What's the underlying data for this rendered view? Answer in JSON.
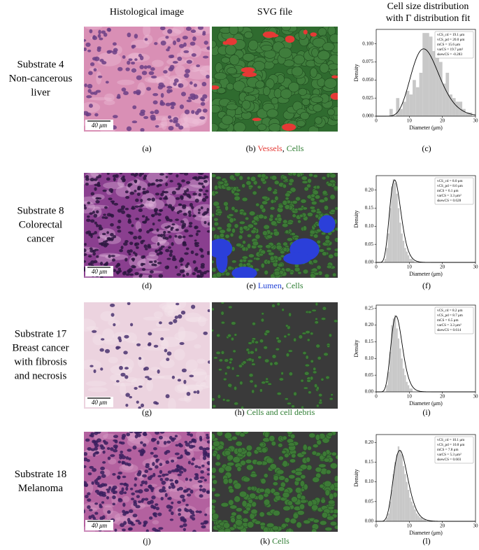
{
  "headers": {
    "histology": "Histological image",
    "svg": "SVG file",
    "distribution": [
      "Cell size distribution",
      "with Γ distribution fit"
    ]
  },
  "rows": [
    {
      "substrate": [
        "Substrate 4",
        "Non-cancerous",
        "liver"
      ],
      "scale_bar": "40 μm",
      "captions": {
        "histology": "(a)",
        "svg": [
          {
            "text": "(b) "
          },
          {
            "text": "Vessels",
            "color": "#e53935"
          },
          {
            "text": ", "
          },
          {
            "text": "Cells",
            "color": "#2e7d32"
          }
        ],
        "chart": "(c)"
      },
      "chart": {
        "type": "histogram",
        "color": "#c8c8c8",
        "fit_color": "#000000",
        "bins": [
          4,
          5,
          6,
          7,
          8,
          9,
          10,
          11,
          12,
          13,
          14,
          15,
          16,
          17,
          18,
          19,
          20,
          21,
          22,
          23,
          24,
          25,
          26,
          27,
          28,
          29
        ],
        "values": [
          0.01,
          0.0,
          0.025,
          0.01,
          0.02,
          0.035,
          0.03,
          0.05,
          0.04,
          0.06,
          0.115,
          0.115,
          0.11,
          0.09,
          0.1,
          0.075,
          0.045,
          0.06,
          0.03,
          0.025,
          0.02,
          0.02,
          0.01,
          0.005,
          0.005
        ],
        "xlim": [
          0,
          30
        ],
        "xticks": [
          0,
          10,
          20,
          30
        ],
        "ylim": [
          0,
          0.12
        ],
        "yticks": [
          {
            "value": 0,
            "label": "0.000"
          },
          {
            "value": 0.025,
            "label": "0.025"
          },
          {
            "value": 0.05,
            "label": "0.050"
          },
          {
            "value": 0.075,
            "label": "0.075"
          },
          {
            "value": 0.1,
            "label": "0.100"
          }
        ],
        "x_label": "Diameter (μm)",
        "y_label": "Density",
        "stats": [
          "vCS_cd = 19.1 μm",
          "vCS_pd = 20.0 μm",
          "mCS = 15.6 μm",
          "varCS = 19.7 μm²",
          "skewCS = -0.283"
        ],
        "fit": {
          "mean": 15.6,
          "var": 19.7
        }
      }
    },
    {
      "substrate": [
        "Substrate 8",
        "Colorectal",
        "cancer"
      ],
      "scale_bar": "40 μm",
      "captions": {
        "histology": "(d)",
        "svg": [
          {
            "text": "(e) "
          },
          {
            "text": "Lumen",
            "color": "#1e3fd6"
          },
          {
            "text": ", "
          },
          {
            "text": "Cells",
            "color": "#2e7d32"
          }
        ],
        "chart": "(f)"
      },
      "chart": {
        "type": "histogram",
        "color": "#c8c8c8",
        "fit_color": "#000000",
        "bins": [
          2.5,
          3,
          3.5,
          4,
          4.5,
          5,
          5.5,
          6,
          6.5,
          7,
          7.5,
          8,
          8.5,
          9,
          9.5,
          10,
          10.5,
          11,
          11.5
        ],
        "values": [
          0.01,
          0.04,
          0.08,
          0.15,
          0.21,
          0.23,
          0.22,
          0.19,
          0.15,
          0.11,
          0.08,
          0.06,
          0.04,
          0.03,
          0.02,
          0.01,
          0.01,
          0.005
        ],
        "xlim": [
          0,
          30
        ],
        "xticks": [
          0,
          10,
          20,
          30
        ],
        "ylim": [
          0,
          0.24
        ],
        "yticks": [
          {
            "value": 0,
            "label": "0.00"
          },
          {
            "value": 0.05,
            "label": "0.05"
          },
          {
            "value": 0.1,
            "label": "0.10"
          },
          {
            "value": 0.15,
            "label": "0.15"
          },
          {
            "value": 0.2,
            "label": "0.20"
          }
        ],
        "x_label": "Diameter (μm)",
        "y_label": "Density",
        "stats": [
          "vCS_cd = 8.0 μm",
          "vCS_pd = 8.6 μm",
          "mCS = 6.1 μm",
          "varCS = 3.3 μm²",
          "skewCS = 0.628"
        ],
        "fit": {
          "mean": 6.1,
          "var": 3.3
        }
      }
    },
    {
      "substrate": [
        "Substrate 17",
        "Breast cancer",
        "with fibrosis",
        "and necrosis"
      ],
      "scale_bar": "40 μm",
      "captions": {
        "histology": "(g)",
        "svg": [
          {
            "text": "(h) "
          },
          {
            "text": "Cells and cell debris",
            "color": "#2e7d32"
          }
        ],
        "chart": "(i)"
      },
      "chart": {
        "type": "histogram",
        "color": "#c8c8c8",
        "fit_color": "#000000",
        "bins": [
          3,
          3.5,
          4,
          4.5,
          5,
          5.5,
          6,
          6.5,
          7,
          7.5,
          8,
          8.5,
          9,
          9.5,
          10,
          10.5,
          11
        ],
        "values": [
          0.02,
          0.06,
          0.12,
          0.2,
          0.22,
          0.23,
          0.19,
          0.16,
          0.13,
          0.1,
          0.07,
          0.05,
          0.03,
          0.02,
          0.01,
          0.01
        ],
        "xlim": [
          0,
          30
        ],
        "xticks": [
          0,
          10,
          20,
          30
        ],
        "ylim": [
          0,
          0.26
        ],
        "yticks": [
          {
            "value": 0,
            "label": "0.00"
          },
          {
            "value": 0.05,
            "label": "0.05"
          },
          {
            "value": 0.1,
            "label": "0.10"
          },
          {
            "value": 0.15,
            "label": "0.15"
          },
          {
            "value": 0.2,
            "label": "0.20"
          },
          {
            "value": 0.25,
            "label": "0.25"
          }
        ],
        "x_label": "Diameter (μm)",
        "y_label": "Density",
        "stats": [
          "vCS_cd = 8.2 μm",
          "vCS_pd = 8.7 μm",
          "mCS = 6.5 μm",
          "varCS = 3.3 μm²",
          "skewCS = 0.614"
        ],
        "fit": {
          "mean": 6.5,
          "var": 3.3
        }
      }
    },
    {
      "substrate": [
        "Substrate 18",
        "Melanoma"
      ],
      "scale_bar": "40 μm",
      "captions": {
        "histology": "(j)",
        "svg": [
          {
            "text": "(k) "
          },
          {
            "text": "Cells",
            "color": "#2e7d32"
          }
        ],
        "chart": "(l)"
      },
      "chart": {
        "type": "histogram",
        "color": "#c8c8c8",
        "fit_color": "#000000",
        "bins": [
          3,
          3.5,
          4,
          4.5,
          5,
          5.5,
          6,
          6.5,
          7,
          7.5,
          8,
          8.5,
          9,
          9.5,
          10,
          10.5,
          11,
          11.5,
          12,
          12.5,
          13,
          13.5,
          14,
          14.5,
          15
        ],
        "values": [
          0.01,
          0.02,
          0.05,
          0.08,
          0.12,
          0.15,
          0.17,
          0.19,
          0.18,
          0.17,
          0.14,
          0.12,
          0.1,
          0.08,
          0.06,
          0.05,
          0.04,
          0.03,
          0.02,
          0.015,
          0.01,
          0.01,
          0.005,
          0.005
        ],
        "xlim": [
          0,
          30
        ],
        "xticks": [
          0,
          10,
          20,
          30
        ],
        "ylim": [
          0,
          0.22
        ],
        "yticks": [
          {
            "value": 0,
            "label": "0.00"
          },
          {
            "value": 0.05,
            "label": "0.05"
          },
          {
            "value": 0.1,
            "label": "0.10"
          },
          {
            "value": 0.15,
            "label": "0.15"
          },
          {
            "value": 0.2,
            "label": "0.20"
          }
        ],
        "x_label": "Diameter (μm)",
        "y_label": "Density",
        "stats": [
          "vCS_cd = 10.1 μm",
          "vCS_pd = 10.8 μm",
          "mCS = 7.8 μm",
          "varCS = 5.3 μm²",
          "skewCS = 0.603"
        ],
        "fit": {
          "mean": 7.8,
          "var": 5.3
        }
      }
    }
  ]
}
